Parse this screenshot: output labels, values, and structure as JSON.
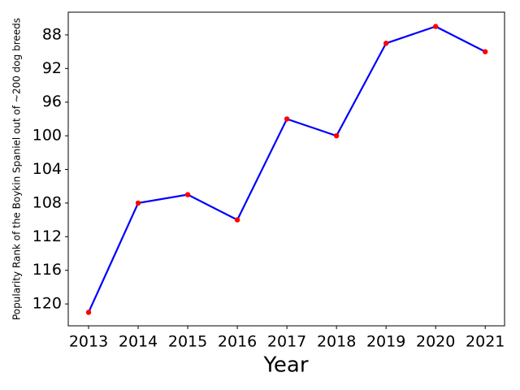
{
  "chart_data": {
    "type": "line",
    "x_label": "Year",
    "y_label": "Popularity Rank of the Boykin Spaniel out of ~200 dog breeds",
    "x": [
      2013,
      2014,
      2015,
      2016,
      2017,
      2018,
      2019,
      2020,
      2021
    ],
    "series": [
      {
        "name": "Boykin Spaniel",
        "color": "#0000ff",
        "marker_color": "#ff0000",
        "values": [
          121,
          108,
          107,
          110,
          98,
          100,
          89,
          87,
          90
        ]
      }
    ],
    "xlim": [
      2012.59,
      2021.39
    ],
    "xticks": [
      2013,
      2014,
      2015,
      2016,
      2017,
      2018,
      2019,
      2020,
      2021
    ],
    "ylim": [
      122.6,
      85.3
    ],
    "yticks": [
      88,
      92,
      96,
      100,
      104,
      108,
      112,
      116,
      120
    ],
    "y_inverted": true,
    "grid": false
  }
}
